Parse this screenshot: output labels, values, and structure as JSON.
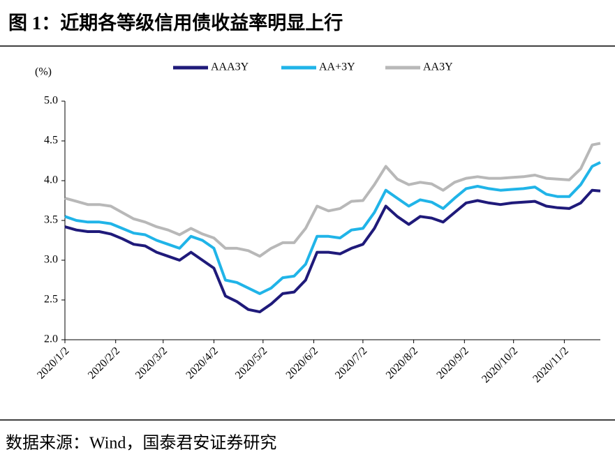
{
  "chart_data": {
    "type": "line",
    "title": "图 1：近期各等级信用债收益率明显上行",
    "source": "数据来源：Wind，国泰君安证券研究",
    "y_label": "(%)",
    "x": [
      "2020/1/2",
      "2020/1/9",
      "2020/1/16",
      "2020/1/23",
      "2020/1/30",
      "2020/2/6",
      "2020/2/13",
      "2020/2/20",
      "2020/2/27",
      "2020/3/5",
      "2020/3/12",
      "2020/3/19",
      "2020/3/26",
      "2020/4/2",
      "2020/4/9",
      "2020/4/16",
      "2020/4/23",
      "2020/4/30",
      "2020/5/7",
      "2020/5/14",
      "2020/5/21",
      "2020/5/28",
      "2020/6/4",
      "2020/6/11",
      "2020/6/18",
      "2020/6/25",
      "2020/7/2",
      "2020/7/9",
      "2020/7/16",
      "2020/7/23",
      "2020/7/30",
      "2020/8/6",
      "2020/8/13",
      "2020/8/20",
      "2020/8/27",
      "2020/9/3",
      "2020/9/10",
      "2020/9/17",
      "2020/9/24",
      "2020/10/1",
      "2020/10/8",
      "2020/10/15",
      "2020/10/22",
      "2020/10/29",
      "2020/11/5",
      "2020/11/12",
      "2020/11/19",
      "2020/11/24"
    ],
    "series": [
      {
        "name": "AAA3Y",
        "color": "#1f1a7a",
        "values": [
          3.42,
          3.38,
          3.36,
          3.36,
          3.33,
          3.27,
          3.2,
          3.18,
          3.1,
          3.05,
          3.0,
          3.1,
          3.0,
          2.9,
          2.55,
          2.48,
          2.38,
          2.35,
          2.45,
          2.58,
          2.6,
          2.75,
          3.1,
          3.1,
          3.08,
          3.15,
          3.2,
          3.4,
          3.68,
          3.55,
          3.45,
          3.55,
          3.53,
          3.48,
          3.6,
          3.72,
          3.75,
          3.72,
          3.7,
          3.72,
          3.73,
          3.74,
          3.68,
          3.66,
          3.65,
          3.72,
          3.88,
          3.87
        ]
      },
      {
        "name": "AA+3Y",
        "color": "#20b4e8",
        "values": [
          3.55,
          3.5,
          3.48,
          3.48,
          3.46,
          3.4,
          3.34,
          3.32,
          3.25,
          3.2,
          3.15,
          3.3,
          3.25,
          3.15,
          2.75,
          2.72,
          2.65,
          2.58,
          2.65,
          2.78,
          2.8,
          2.95,
          3.3,
          3.3,
          3.28,
          3.38,
          3.4,
          3.6,
          3.88,
          3.78,
          3.68,
          3.76,
          3.73,
          3.65,
          3.78,
          3.9,
          3.93,
          3.9,
          3.88,
          3.89,
          3.9,
          3.92,
          3.83,
          3.8,
          3.8,
          3.95,
          4.18,
          4.23
        ]
      },
      {
        "name": "AA3Y",
        "color": "#b8b8b8",
        "values": [
          3.78,
          3.74,
          3.7,
          3.7,
          3.68,
          3.6,
          3.52,
          3.48,
          3.42,
          3.38,
          3.32,
          3.4,
          3.33,
          3.28,
          3.15,
          3.15,
          3.12,
          3.05,
          3.15,
          3.22,
          3.22,
          3.4,
          3.68,
          3.62,
          3.65,
          3.74,
          3.75,
          3.95,
          4.18,
          4.02,
          3.95,
          3.98,
          3.96,
          3.88,
          3.98,
          4.03,
          4.05,
          4.03,
          4.03,
          4.04,
          4.05,
          4.07,
          4.03,
          4.02,
          4.01,
          4.15,
          4.45,
          4.47
        ]
      }
    ],
    "xlim": [
      "2020/1/2",
      "2020/11/24"
    ],
    "xticks": [
      "2020/1/2",
      "2020/2/2",
      "2020/3/2",
      "2020/4/2",
      "2020/5/2",
      "2020/6/2",
      "2020/7/2",
      "2020/8/2",
      "2020/9/2",
      "2020/10/2",
      "2020/11/2"
    ],
    "ylim": [
      2,
      5
    ],
    "yticks": [
      {
        "value": 2,
        "label": "2.0"
      },
      {
        "value": 2.5,
        "label": "2.5"
      },
      {
        "value": 3,
        "label": "3.0"
      },
      {
        "value": 3.5,
        "label": "3.5"
      },
      {
        "value": 4,
        "label": "4.0"
      },
      {
        "value": 4.5,
        "label": "4.5"
      },
      {
        "value": 5,
        "label": "5.0"
      }
    ],
    "legend": "top"
  }
}
